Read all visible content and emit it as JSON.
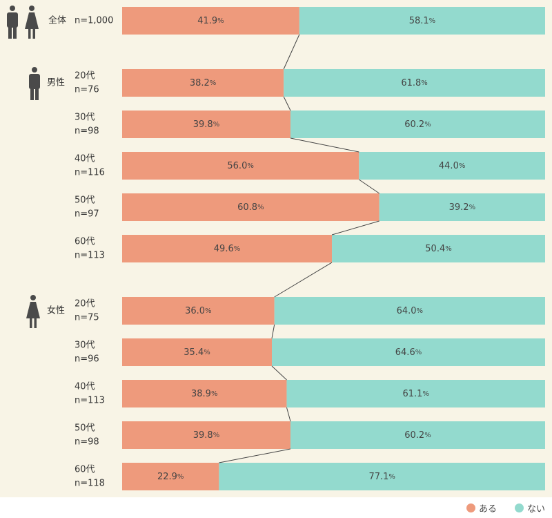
{
  "colors": {
    "aru": "#ee9a7c",
    "nai": "#93dace",
    "background": "#f8f4e6",
    "person_icon": "#4a4a4a"
  },
  "chart_data": {
    "type": "bar",
    "stacked": true,
    "orientation": "horizontal",
    "percent_stacked": true,
    "series": [
      {
        "name": "ある",
        "values": [
          41.9,
          38.2,
          39.8,
          56.0,
          60.8,
          49.6,
          36.0,
          35.4,
          38.9,
          39.8,
          22.9
        ]
      },
      {
        "name": "ない",
        "values": [
          58.1,
          61.8,
          60.2,
          44.0,
          39.2,
          50.4,
          64.0,
          64.6,
          61.1,
          60.2,
          77.1
        ]
      }
    ],
    "rows": [
      {
        "group": "全体",
        "age": "",
        "n": "n=1,000",
        "aru": "41.9",
        "nai": "58.1"
      },
      {
        "group": "男性",
        "age": "20代",
        "n": "n=76",
        "aru": "38.2",
        "nai": "61.8"
      },
      {
        "group": "男性",
        "age": "30代",
        "n": "n=98",
        "aru": "39.8",
        "nai": "60.2"
      },
      {
        "group": "男性",
        "age": "40代",
        "n": "n=116",
        "aru": "56.0",
        "nai": "44.0"
      },
      {
        "group": "男性",
        "age": "50代",
        "n": "n=97",
        "aru": "60.8",
        "nai": "39.2"
      },
      {
        "group": "男性",
        "age": "60代",
        "n": "n=113",
        "aru": "49.6",
        "nai": "50.4"
      },
      {
        "group": "女性",
        "age": "20代",
        "n": "n=75",
        "aru": "36.0",
        "nai": "64.0"
      },
      {
        "group": "女性",
        "age": "30代",
        "n": "n=96",
        "aru": "35.4",
        "nai": "64.6"
      },
      {
        "group": "女性",
        "age": "40代",
        "n": "n=113",
        "aru": "38.9",
        "nai": "61.1"
      },
      {
        "group": "女性",
        "age": "50代",
        "n": "n=98",
        "aru": "39.8",
        "nai": "60.2"
      },
      {
        "group": "女性",
        "age": "60代",
        "n": "n=118",
        "aru": "22.9",
        "nai": "77.1"
      }
    ],
    "group_labels": {
      "total": "全体",
      "male": "男性",
      "female": "女性"
    },
    "percent_sign": "%",
    "xlim": [
      0,
      100
    ],
    "connector_lines": true,
    "legend": {
      "position": "bottom-right",
      "items": [
        "ある",
        "ない"
      ]
    }
  }
}
